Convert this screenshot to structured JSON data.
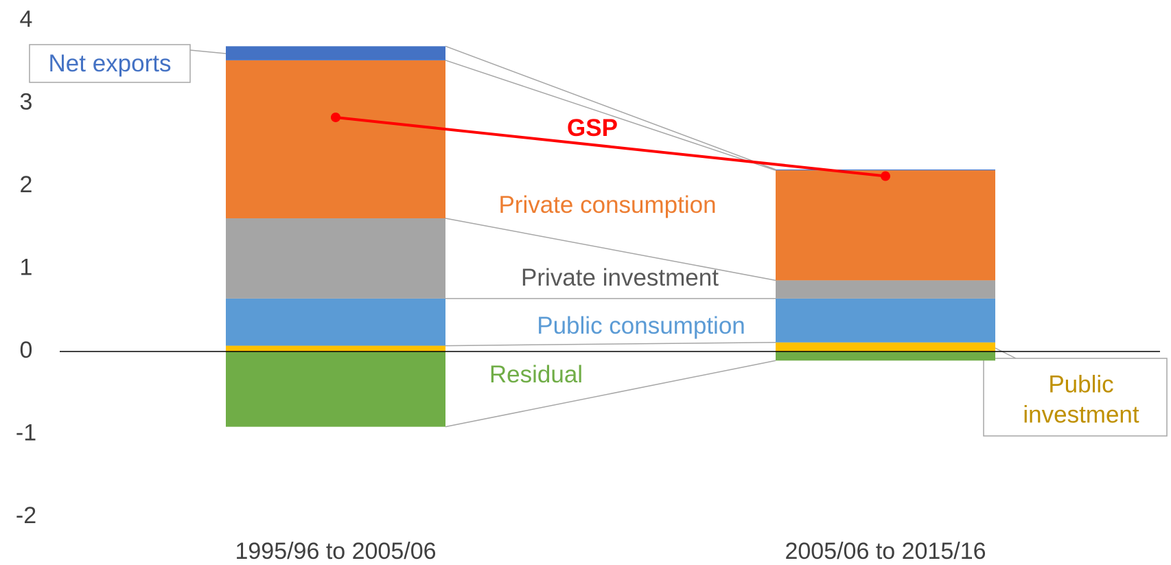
{
  "chart_data": {
    "type": "bar",
    "stacked": true,
    "categories": [
      "1995/96 to 2005/06",
      "2005/06 to 2015/16"
    ],
    "series": [
      {
        "name": "Residual",
        "color": "#70ad47",
        "label_color": "#70ad47",
        "values": [
          -0.91,
          -0.11
        ]
      },
      {
        "name": "Public investment",
        "color": "#ffc000",
        "label_color": "#bf9000",
        "values": [
          0.07,
          0.11
        ]
      },
      {
        "name": "Public consumption",
        "color": "#5b9bd5",
        "label_color": "#5b9bd5",
        "values": [
          0.57,
          0.53
        ]
      },
      {
        "name": "Private investment",
        "color": "#a5a5a5",
        "label_color": "#595959",
        "values": [
          0.97,
          0.22
        ]
      },
      {
        "name": "Private consumption",
        "color": "#ed7d31",
        "label_color": "#ed7d31",
        "values": [
          1.91,
          1.33
        ]
      },
      {
        "name": "Net exports",
        "color": "#4472c4",
        "label_color": "#4472c4",
        "values": [
          0.17,
          0.01
        ]
      },
      {
        "name": "GSP",
        "type": "line",
        "color": "#ff0000",
        "label_color": "#ff0000",
        "values": [
          2.83,
          2.12
        ]
      }
    ],
    "ylim": [
      -2,
      4
    ],
    "yticks": [
      -2,
      -1,
      0,
      1,
      2,
      3,
      4
    ],
    "grid": false
  }
}
